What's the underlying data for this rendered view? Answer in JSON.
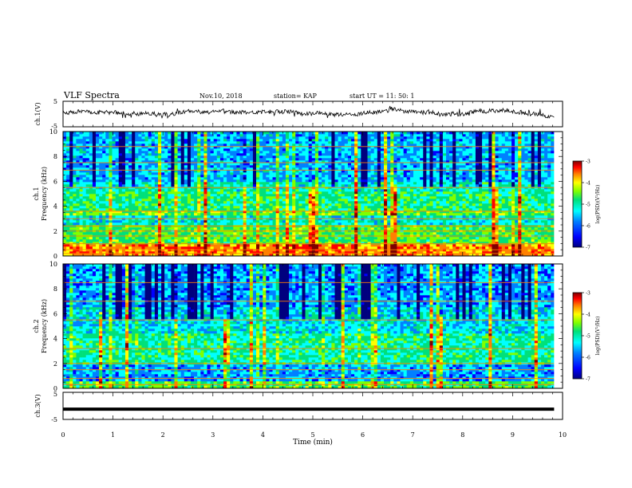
{
  "header": {
    "title": "VLF Spectra",
    "date": "Nov.10, 2018",
    "station": "station= KAP",
    "start": "start  UT =   11: 50: 1"
  },
  "colors": {
    "colormap": [
      "#00007f",
      "#0000ff",
      "#0080ff",
      "#00ffff",
      "#00e07a",
      "#80ff00",
      "#ffff00",
      "#ff8000",
      "#ff0000",
      "#7f0000"
    ],
    "trace": "#000000",
    "axis": "#000000"
  },
  "chart_data": [
    {
      "type": "line",
      "name": "ch1-voltage",
      "ylabel": "ch.1(V)",
      "ylim": [
        -5,
        5
      ],
      "yticks": [
        "5",
        "-5"
      ],
      "xlim": [
        0,
        10
      ],
      "trace_range_min": [
        0,
        9.83
      ],
      "trace_level_v": [
        -1.5,
        3.5
      ],
      "trace_mean_v": 0.5
    },
    {
      "type": "heatmap",
      "name": "ch1-spectrogram",
      "ylabel": "Frequency (kHz)",
      "channel": "ch.1",
      "ylim": [
        0,
        10
      ],
      "yticks": [
        "0",
        "2",
        "4",
        "6",
        "8",
        "10"
      ],
      "xlim": [
        0,
        10
      ],
      "data_range_min": [
        0,
        9.83
      ],
      "colorbar": {
        "label": "log(PSD)(V²/Hz)",
        "min": -7,
        "max": -3,
        "ticks": [
          "-3",
          "-4",
          "-5",
          "-6",
          "-7"
        ]
      },
      "bands_khz": [
        {
          "from": 0,
          "to": 1.0,
          "log_psd": -4.0
        },
        {
          "from": 1.0,
          "to": 2.5,
          "log_psd": -5.0
        },
        {
          "from": 2.5,
          "to": 3.2,
          "log_psd": -5.5
        },
        {
          "from": 3.2,
          "to": 3.7,
          "log_psd": -4.9
        },
        {
          "from": 3.7,
          "to": 5.2,
          "log_psd": -5.2
        },
        {
          "from": 5.2,
          "to": 6.0,
          "log_psd": -5.4
        },
        {
          "from": 6.0,
          "to": 10.0,
          "log_psd": -5.8
        }
      ],
      "tone_lines_khz": [
        0.2,
        0.5,
        1.0,
        1.6,
        2.0,
        2.4,
        3.0,
        3.6,
        5.5,
        6.9,
        7.5,
        8.8
      ]
    },
    {
      "type": "heatmap",
      "name": "ch2-spectrogram",
      "ylabel": "Frequency (kHz)",
      "channel": "ch.2",
      "ylim": [
        0,
        10
      ],
      "yticks": [
        "0",
        "2",
        "4",
        "6",
        "8",
        "10"
      ],
      "xlim": [
        0,
        10
      ],
      "data_range_min": [
        0,
        9.83
      ],
      "colorbar": {
        "label": "log(PSD)(V²/Hz)",
        "min": -7,
        "max": -3,
        "ticks": [
          "-3",
          "-4",
          "-5",
          "-6",
          "-7"
        ]
      },
      "bands_khz": [
        {
          "from": 0,
          "to": 0.6,
          "log_psd": -5.0
        },
        {
          "from": 0.6,
          "to": 2.0,
          "log_psd": -5.9
        },
        {
          "from": 2.0,
          "to": 4.5,
          "log_psd": -5.3
        },
        {
          "from": 4.5,
          "to": 6.5,
          "log_psd": -5.6
        },
        {
          "from": 6.5,
          "to": 10.0,
          "log_psd": -5.9
        }
      ],
      "tone_lines_khz": [
        0.3,
        0.8,
        1.5,
        2.0,
        3.2,
        5.5,
        7.0,
        8.5
      ]
    },
    {
      "type": "line",
      "name": "ch3-voltage",
      "ylabel": "ch.3(V)",
      "ylim": [
        -5,
        5
      ],
      "yticks": [
        "5",
        "-5"
      ],
      "xlim": [
        0,
        10
      ],
      "trace_range_min": [
        0,
        9.83
      ],
      "value_v": -1.2
    }
  ],
  "xaxis": {
    "label": "Time  (min)",
    "ticks": [
      "0",
      "1",
      "2",
      "3",
      "4",
      "5",
      "6",
      "7",
      "8",
      "9",
      "10"
    ]
  }
}
